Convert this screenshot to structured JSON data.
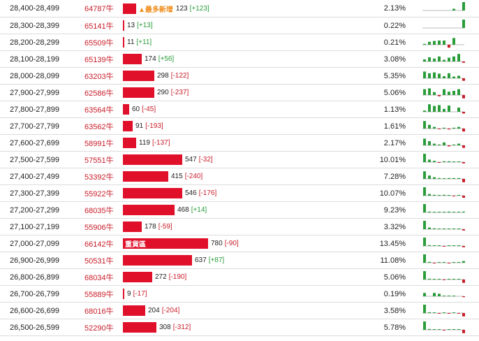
{
  "colors": {
    "bar": "#e0102a",
    "positive": "#2a9d3a",
    "negative": "#c81e2a",
    "new_tag": "#f08c1a"
  },
  "rows": [
    {
      "range": "28,400-28,499",
      "lot": "64787牛",
      "count": "123",
      "change": "[+123]",
      "pct": "2.13%",
      "tag": "▲最多新增",
      "bar": 0.024,
      "spark": [
        0,
        0,
        0,
        0,
        0,
        0,
        0.2,
        0,
        1
      ]
    },
    {
      "range": "28,300-28,399",
      "lot": "65141牛",
      "count": "13",
      "change": "[+13]",
      "pct": "0.22%",
      "tag": "",
      "bar": 0.002,
      "spark": [
        0,
        0,
        0,
        0,
        0,
        0,
        0,
        0,
        1
      ]
    },
    {
      "range": "28,200-28,299",
      "lot": "65509牛",
      "count": "11",
      "change": "[+11]",
      "pct": "0.21%",
      "tag": "",
      "bar": 0.002,
      "spark": [
        0.1,
        0.35,
        0.45,
        0.5,
        0.5,
        -0.7,
        0.8,
        0,
        0
      ]
    },
    {
      "range": "28,100-28,199",
      "lot": "65139牛",
      "count": "174",
      "change": "[+56]",
      "pct": "3.08%",
      "tag": "",
      "bar": 0.034,
      "spark": [
        0.25,
        0.5,
        0.35,
        0.6,
        0.2,
        0.45,
        0.6,
        0.9,
        -0.3
      ]
    },
    {
      "range": "28,000-28,099",
      "lot": "63203牛",
      "count": "298",
      "change": "[-122]",
      "pct": "5.35%",
      "tag": "",
      "bar": 0.058,
      "spark": [
        0.8,
        0.6,
        0.7,
        0.55,
        0.25,
        0.6,
        0.2,
        0.3,
        -0.6
      ]
    },
    {
      "range": "27,900-27,999",
      "lot": "62586牛",
      "count": "290",
      "change": "[-237]",
      "pct": "5.06%",
      "tag": "",
      "bar": 0.057,
      "spark": [
        0.7,
        0.8,
        0.35,
        -0.3,
        0.7,
        0.4,
        0.5,
        0.7,
        -0.8
      ]
    },
    {
      "range": "27,800-27,899",
      "lot": "63564牛",
      "count": "60",
      "change": "[-45]",
      "pct": "1.13%",
      "tag": "",
      "bar": 0.012,
      "spark": [
        0.15,
        0.9,
        0.7,
        0.8,
        0.35,
        0.75,
        0,
        0.5,
        -0.4
      ]
    },
    {
      "range": "27,700-27,799",
      "lot": "63562牛",
      "count": "91",
      "change": "[-193]",
      "pct": "1.61%",
      "tag": "",
      "bar": 0.018,
      "spark": [
        0.9,
        0.45,
        0.2,
        -0.15,
        0.1,
        -0.2,
        0.1,
        0.2,
        -0.7
      ]
    },
    {
      "range": "27,600-27,699",
      "lot": "58991牛",
      "count": "119",
      "change": "[-137]",
      "pct": "2.17%",
      "tag": "",
      "bar": 0.024,
      "spark": [
        0.8,
        0.5,
        0.2,
        0.1,
        0.35,
        -0.25,
        0.1,
        0.2,
        -0.6
      ]
    },
    {
      "range": "27,500-27,599",
      "lot": "57551牛",
      "count": "547",
      "change": "[-32]",
      "pct": "10.01%",
      "tag": "",
      "bar": 0.109,
      "spark": [
        1,
        0.3,
        0.15,
        -0.1,
        0.1,
        0.1,
        0.05,
        0.05,
        -0.3
      ]
    },
    {
      "range": "27,400-27,499",
      "lot": "53392牛",
      "count": "415",
      "change": "[-240]",
      "pct": "7.28%",
      "tag": "",
      "bar": 0.083,
      "spark": [
        0.9,
        0.4,
        0.2,
        0.1,
        0.05,
        0.1,
        0.1,
        0.1,
        -0.8
      ]
    },
    {
      "range": "27,300-27,399",
      "lot": "55922牛",
      "count": "546",
      "change": "[-176]",
      "pct": "10.07%",
      "tag": "",
      "bar": 0.109,
      "spark": [
        1,
        0.2,
        0.1,
        0.05,
        0.1,
        0.05,
        -0.05,
        0.05,
        -0.5
      ]
    },
    {
      "range": "27,200-27,299",
      "lot": "68035牛",
      "count": "468",
      "change": "[+14]",
      "pct": "9.23%",
      "tag": "",
      "bar": 0.094,
      "spark": [
        1,
        0.1,
        0.05,
        0.05,
        0.05,
        0.1,
        0.05,
        0.05,
        0.1
      ]
    },
    {
      "range": "27,100-27,199",
      "lot": "55906牛",
      "count": "178",
      "change": "[-59]",
      "pct": "3.32%",
      "tag": "",
      "bar": 0.035,
      "spark": [
        1,
        0.2,
        0.1,
        0.05,
        0.05,
        0.05,
        0.05,
        0.05,
        -0.3
      ]
    },
    {
      "range": "27,000-27,099",
      "lot": "66142牛",
      "count": "780",
      "change": "[-90]",
      "pct": "13.45%",
      "tag": "重貨區",
      "bar": 0.156,
      "spark": [
        1,
        0.1,
        0.05,
        0.05,
        -0.05,
        0.05,
        0.05,
        0.05,
        -0.3
      ]
    },
    {
      "range": "26,900-26,999",
      "lot": "50531牛",
      "count": "637",
      "change": "[+87]",
      "pct": "11.08%",
      "tag": "",
      "bar": 0.127,
      "spark": [
        1,
        0.1,
        -0.1,
        0.05,
        0.05,
        -0.05,
        0.05,
        0.05,
        0.2
      ]
    },
    {
      "range": "26,800-26,899",
      "lot": "68034牛",
      "count": "272",
      "change": "[-190]",
      "pct": "5.06%",
      "tag": "",
      "bar": 0.054,
      "spark": [
        1,
        0.1,
        0.05,
        0.05,
        -0.05,
        0.05,
        0.05,
        0.05,
        -0.8
      ]
    },
    {
      "range": "26,700-26,799",
      "lot": "55889牛",
      "count": "9",
      "change": "[-17]",
      "pct": "0.19%",
      "tag": "",
      "bar": 0.002,
      "spark": [
        0.4,
        0,
        0.4,
        0.3,
        0.05,
        0.05,
        0.05,
        0,
        -0.2
      ]
    },
    {
      "range": "26,600-26,699",
      "lot": "68016牛",
      "count": "204",
      "change": "[-204]",
      "pct": "3.58%",
      "tag": "",
      "bar": 0.041,
      "spark": [
        1,
        0.1,
        0.05,
        -0.1,
        0.05,
        -0.1,
        0.05,
        -0.05,
        -0.8
      ]
    },
    {
      "range": "26,500-26,599",
      "lot": "52290牛",
      "count": "308",
      "change": "[-312]",
      "pct": "5.78%",
      "tag": "",
      "bar": 0.061,
      "spark": [
        1,
        0.1,
        0.05,
        0.05,
        -0.1,
        0.05,
        0.05,
        0.05,
        -0.8
      ]
    }
  ]
}
